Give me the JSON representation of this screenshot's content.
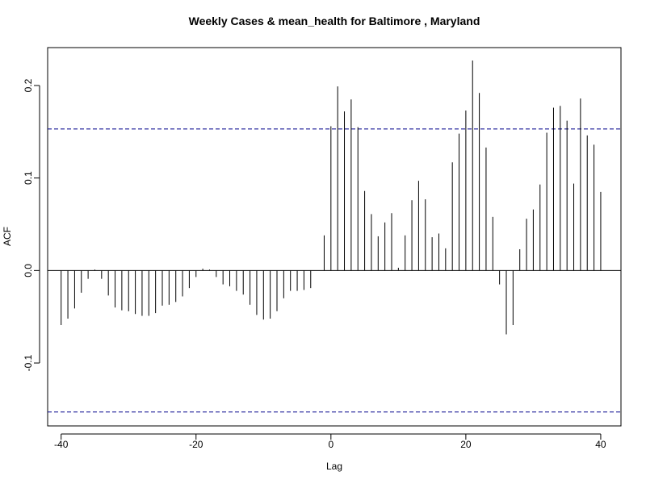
{
  "chart_data": {
    "type": "bar",
    "title": "Weekly Cases & mean_health for Baltimore , Maryland",
    "xlabel": "Lag",
    "ylabel": "ACF",
    "xlim": [
      -42,
      43
    ],
    "ylim": [
      -0.168,
      0.241
    ],
    "x_ticks": [
      -40,
      -20,
      0,
      20,
      40
    ],
    "y_ticks": [
      -0.1,
      0.0,
      0.1,
      0.2
    ],
    "x_tick_labels": [
      "-40",
      "-20",
      "0",
      "20",
      "40"
    ],
    "y_tick_labels": [
      "-0.1",
      "0.0",
      "0.1",
      "0.2"
    ],
    "confidence_band": 0.153,
    "colors": {
      "bars": "#000000",
      "band": "#00008b",
      "axis": "#000000"
    },
    "grid": false,
    "lags": [
      -40,
      -39,
      -38,
      -37,
      -36,
      -35,
      -34,
      -33,
      -32,
      -31,
      -30,
      -29,
      -28,
      -27,
      -26,
      -25,
      -24,
      -23,
      -22,
      -21,
      -20,
      -19,
      -18,
      -17,
      -16,
      -15,
      -14,
      -13,
      -12,
      -11,
      -10,
      -9,
      -8,
      -7,
      -6,
      -5,
      -4,
      -3,
      -2,
      -1,
      0,
      1,
      2,
      3,
      4,
      5,
      6,
      7,
      8,
      9,
      10,
      11,
      12,
      13,
      14,
      15,
      16,
      17,
      18,
      19,
      20,
      21,
      22,
      23,
      24,
      25,
      26,
      27,
      28,
      29,
      30,
      31,
      32,
      33,
      34,
      35,
      36,
      37,
      38,
      39,
      40
    ],
    "values": [
      -0.059,
      -0.052,
      -0.041,
      -0.024,
      -0.009,
      0.001,
      -0.009,
      -0.027,
      -0.04,
      -0.043,
      -0.044,
      -0.047,
      -0.049,
      -0.049,
      -0.046,
      -0.038,
      -0.037,
      -0.034,
      -0.028,
      -0.019,
      -0.007,
      0.002,
      0.001,
      -0.007,
      -0.015,
      -0.017,
      -0.022,
      -0.026,
      -0.037,
      -0.048,
      -0.053,
      -0.052,
      -0.044,
      -0.03,
      -0.022,
      -0.022,
      -0.021,
      -0.019,
      0.0,
      0.038,
      0.156,
      0.199,
      0.172,
      0.185,
      0.155,
      0.086,
      0.061,
      0.037,
      0.052,
      0.062,
      0.003,
      0.038,
      0.076,
      0.097,
      0.077,
      0.036,
      0.04,
      0.024,
      0.117,
      0.148,
      0.173,
      0.227,
      0.192,
      0.133,
      0.058,
      -0.015,
      -0.069,
      -0.059,
      0.023,
      0.056,
      0.066,
      0.093,
      0.149,
      0.176,
      0.178,
      0.162,
      0.094,
      0.186,
      0.146,
      0.136,
      0.085
    ]
  }
}
